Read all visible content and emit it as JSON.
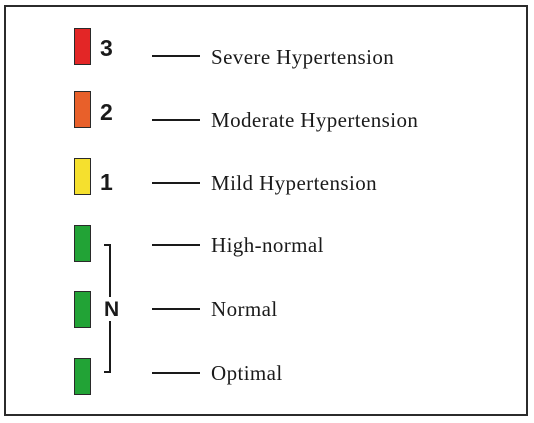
{
  "legend": {
    "items": [
      {
        "level": "3",
        "label": "Severe Hypertension",
        "color": "#e32626"
      },
      {
        "level": "2",
        "label": "Moderate Hypertension",
        "color": "#e8602a"
      },
      {
        "level": "1",
        "label": "Mild Hypertension",
        "color": "#f5e02e"
      },
      {
        "level": "",
        "label": "High-normal",
        "color": "#22a336"
      },
      {
        "level": "",
        "label": "Normal",
        "color": "#22a336"
      },
      {
        "level": "",
        "label": "Optimal",
        "color": "#22a336"
      }
    ],
    "group_label": "N"
  }
}
